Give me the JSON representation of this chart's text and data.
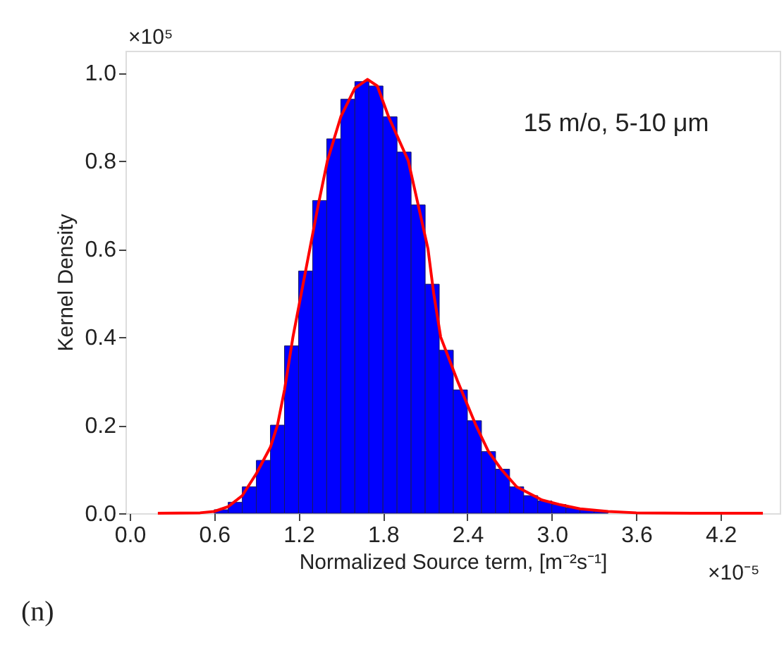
{
  "chart_data": {
    "type": "histogram",
    "xlabel": "Normalized Source term, [m⁻²s⁻¹]",
    "ylabel": "Kernel Density",
    "annotations": [
      "15 m/o, 5-10 μm",
      "×10⁵",
      "×10⁻⁵",
      "(n)"
    ],
    "xlim": [
      -0.03,
      4.62
    ],
    "ylim": [
      0,
      1.05
    ],
    "xticks": [
      {
        "value": 0,
        "label": "0.0"
      },
      0.6,
      1.2,
      1.8,
      2.4,
      {
        "value": 3,
        "label": "3.0"
      },
      3.6,
      4.2
    ],
    "yticks": [
      {
        "value": 0,
        "label": "0.0"
      },
      0.2,
      0.4,
      0.6,
      0.8,
      {
        "value": 1,
        "label": "1.0"
      }
    ],
    "grid": false,
    "series": [
      {
        "type": "histogram",
        "color": "#0000ff",
        "bins": [
          0.6,
          0.7,
          0.8,
          0.9,
          1.0,
          1.1,
          1.2,
          1.3,
          1.4,
          1.5,
          1.6,
          1.7,
          1.8,
          1.9,
          2.0,
          2.1,
          2.2,
          2.3,
          2.4,
          2.5,
          2.6,
          2.7,
          2.8,
          2.9,
          3.0,
          3.1,
          3.2,
          3.3,
          3.4
        ],
        "values": [
          0.008,
          0.025,
          0.06,
          0.12,
          0.2,
          0.38,
          0.55,
          0.71,
          0.85,
          0.94,
          0.98,
          0.97,
          0.9,
          0.82,
          0.7,
          0.52,
          0.37,
          0.28,
          0.21,
          0.14,
          0.1,
          0.06,
          0.04,
          0.028,
          0.02,
          0.012,
          0.008,
          0.005
        ]
      },
      {
        "type": "line",
        "color": "#ff0000",
        "x": [
          0.2,
          0.5,
          0.6,
          0.7,
          0.8,
          0.9,
          1.0,
          1.05,
          1.1,
          1.16,
          1.22,
          1.28,
          1.34,
          1.405,
          1.5,
          1.6,
          1.69,
          1.76,
          1.84,
          1.98,
          2.05,
          2.12,
          2.16,
          2.21,
          2.33,
          2.46,
          2.55,
          2.64,
          2.75,
          2.93,
          3.05,
          3.2,
          3.4,
          3.6,
          4.0,
          4.5
        ],
        "values": [
          0,
          0.001,
          0.004,
          0.015,
          0.04,
          0.09,
          0.15,
          0.2,
          0.28,
          0.4,
          0.5,
          0.6,
          0.7,
          0.8,
          0.9,
          0.965,
          0.985,
          0.97,
          0.9,
          0.8,
          0.7,
          0.6,
          0.5,
          0.4,
          0.3,
          0.2,
          0.14,
          0.1,
          0.06,
          0.03,
          0.02,
          0.01,
          0.004,
          0.001,
          0,
          0
        ]
      }
    ]
  }
}
